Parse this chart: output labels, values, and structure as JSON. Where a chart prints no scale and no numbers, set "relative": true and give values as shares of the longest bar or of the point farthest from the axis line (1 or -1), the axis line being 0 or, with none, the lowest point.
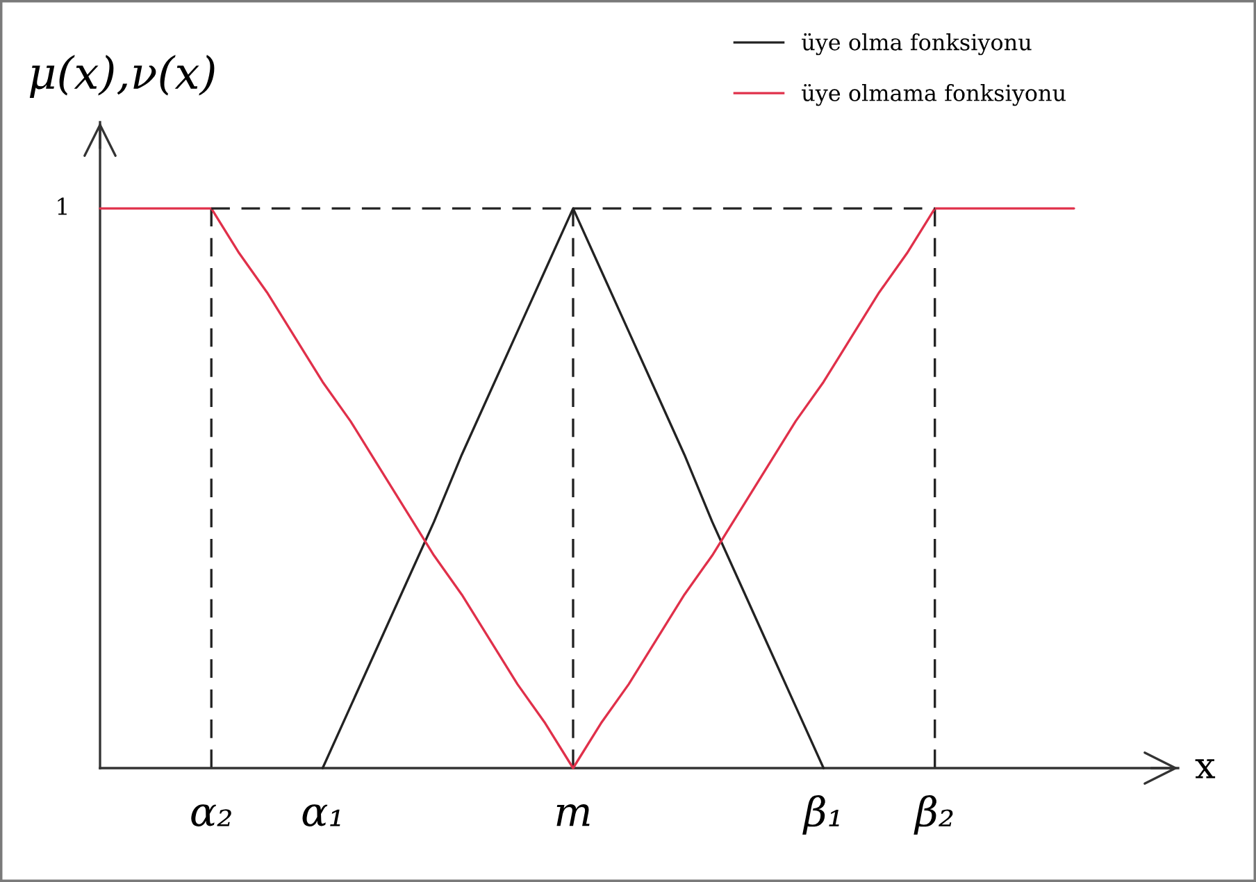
{
  "chart_data": {
    "type": "line",
    "relative": true,
    "xlabel": "x",
    "ylabel": "μ(x),ν(x)",
    "legend": "top right",
    "line_style": "solid",
    "categories": [
      null,
      null,
      null,
      null,
      "α₂",
      null,
      null,
      null,
      "α₁",
      null,
      null,
      null,
      null,
      null,
      null,
      null,
      null,
      "m",
      null,
      null,
      null,
      null,
      null,
      null,
      null,
      null,
      "β₁",
      null,
      null,
      null,
      "β₂",
      null,
      null,
      null,
      null,
      null
    ],
    "series": [
      {
        "name": "üye olma fonksiyonu",
        "color": "#222222",
        "values": [
          null,
          null,
          null,
          null,
          null,
          null,
          null,
          null,
          0,
          0.11,
          0.22,
          0.33,
          0.44,
          0.56,
          0.67,
          0.78,
          0.89,
          1,
          0.89,
          0.78,
          0.67,
          0.56,
          0.44,
          0.33,
          0.22,
          0.11,
          0,
          null,
          null,
          null,
          null,
          null,
          null,
          null,
          null,
          null
        ]
      },
      {
        "name": "üye olmama fonksiyonu",
        "color": "#e0304a",
        "values": [
          1,
          1,
          1,
          1,
          1,
          0.92,
          0.85,
          0.77,
          0.69,
          0.62,
          0.54,
          0.46,
          0.38,
          0.31,
          0.23,
          0.15,
          0.08,
          0,
          0.08,
          0.15,
          0.23,
          0.31,
          0.38,
          0.46,
          0.54,
          0.62,
          0.69,
          0.77,
          0.85,
          0.92,
          1,
          1,
          1,
          1,
          1,
          1
        ]
      },
      {
        "color": "#222222",
        "line_style": "dashed",
        "values": [
          null,
          null,
          null,
          null,
          1,
          1,
          1,
          1,
          1,
          1,
          1,
          1,
          1,
          1,
          1,
          1,
          1,
          1,
          1,
          1,
          1,
          1,
          1,
          1,
          1,
          1,
          1,
          1,
          1,
          1,
          1,
          null,
          null,
          null,
          null,
          null
        ]
      }
    ],
    "annotations": [
      "1"
    ],
    "ref_lines": [
      {
        "axis": "x",
        "value": "α₂",
        "color": "#222222",
        "line_style": "dashed"
      },
      {
        "axis": "x",
        "value": "m",
        "color": "#222222",
        "line_style": "dashed"
      },
      {
        "axis": "x",
        "value": "β₂",
        "color": "#222222",
        "line_style": "dashed"
      }
    ]
  }
}
